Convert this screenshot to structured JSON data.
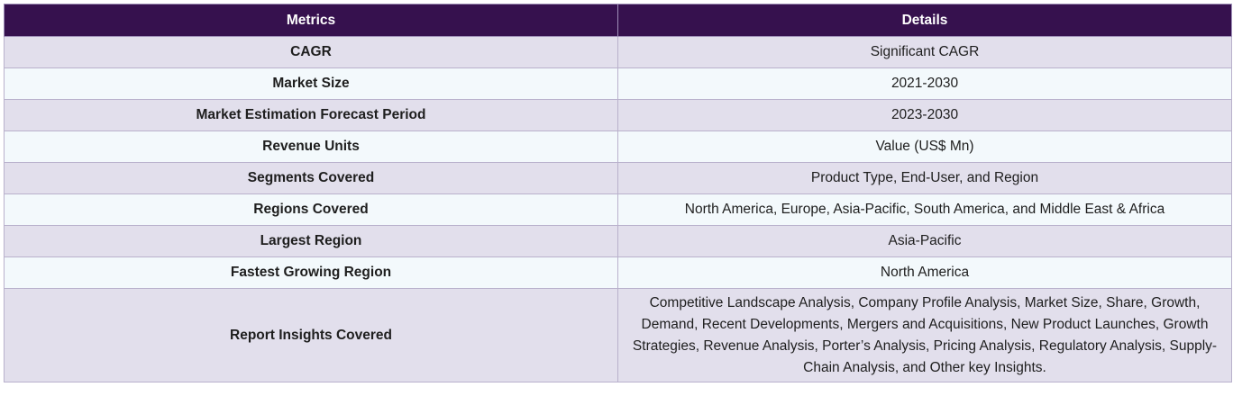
{
  "table": {
    "headers": [
      "Metrics",
      "Details"
    ],
    "rows": [
      {
        "metric": "CAGR",
        "details": "Significant CAGR"
      },
      {
        "metric": "Market Size",
        "details": "2021-2030"
      },
      {
        "metric": "Market Estimation Forecast Period",
        "details": "2023-2030"
      },
      {
        "metric": "Revenue Units",
        "details": "Value (US$ Mn)"
      },
      {
        "metric": "Segments Covered",
        "details": "Product Type, End-User, and Region"
      },
      {
        "metric": "Regions Covered",
        "details": "North America, Europe, Asia-Pacific, South America, and Middle East & Africa"
      },
      {
        "metric": "Largest Region",
        "details": "Asia-Pacific"
      },
      {
        "metric": "Fastest Growing Region",
        "details": "North America"
      },
      {
        "metric": "Report Insights Covered",
        "details": "Competitive Landscape Analysis, Company Profile Analysis, Market Size, Share, Growth, Demand, Recent Developments, Mergers and Acquisitions, New Product Launches, Growth Strategies, Revenue Analysis, Porter’s Analysis, Pricing Analysis, Regulatory Analysis, Supply-Chain Analysis, and Other key Insights."
      }
    ]
  },
  "colors": {
    "header_bg": "#36114e",
    "header_text": "#ffffff",
    "row_odd_bg": "#e2dfec",
    "row_even_bg": "#f3f9fc",
    "border": "#b9b1cc"
  }
}
